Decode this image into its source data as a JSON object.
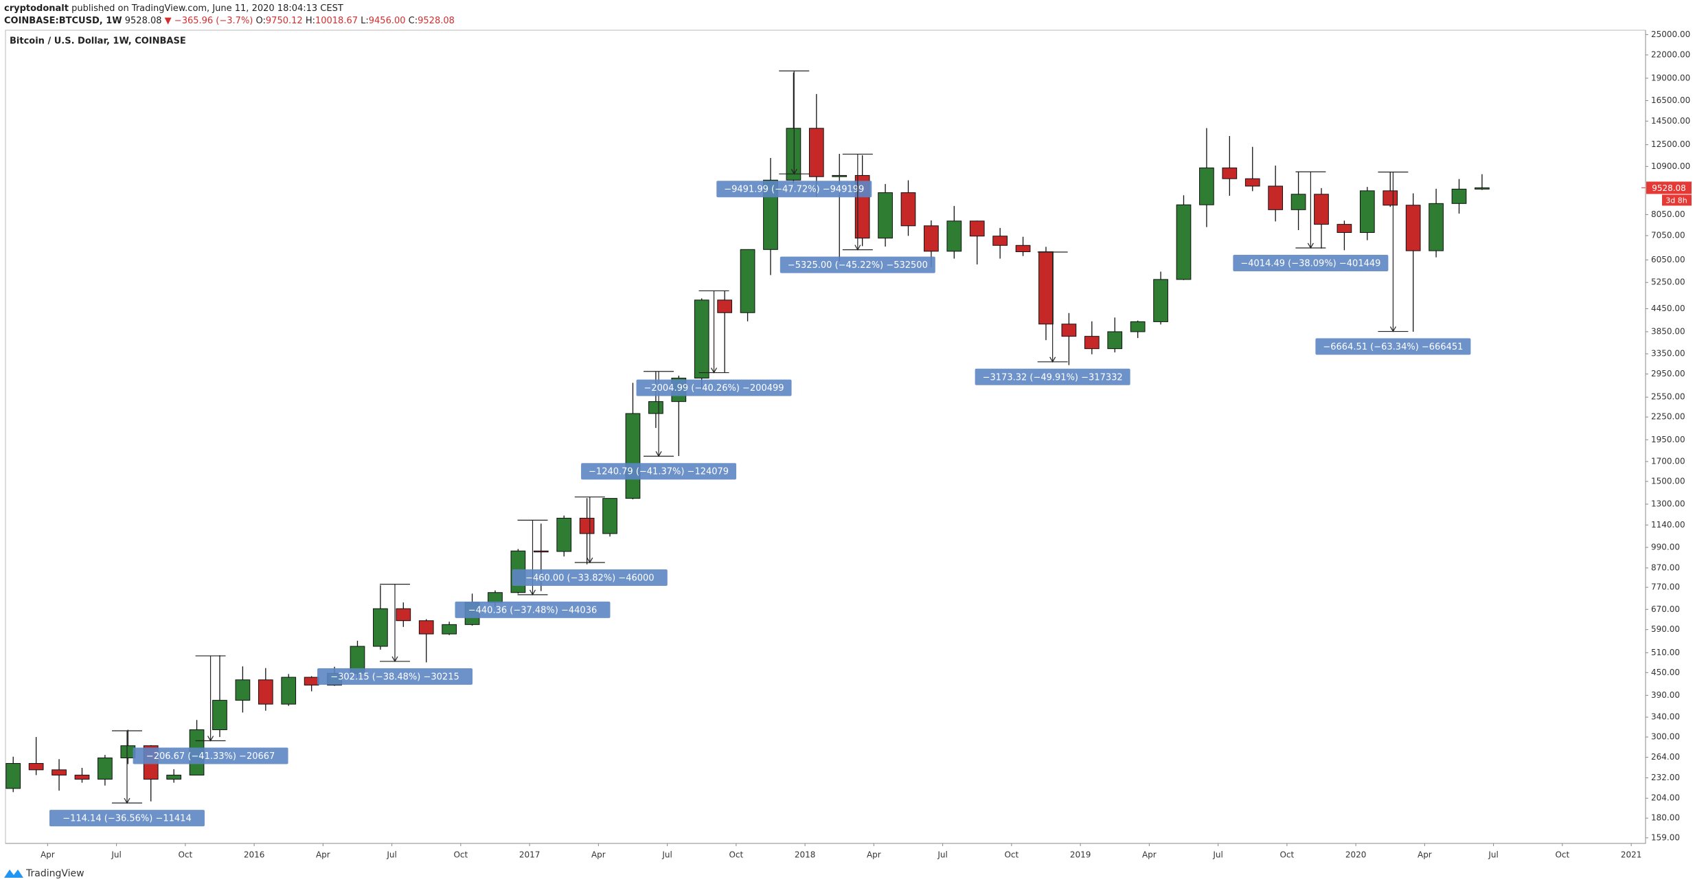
{
  "header": {
    "publisher": "cryptodonalt",
    "published": "published on TradingView.com, June 11, 2020 18:04:13 CEST",
    "symbol": "COINBASE:BTCUSD, 1W",
    "last": "9528.08",
    "change_arrow": "▼",
    "change": "−365.96 (−3.7%)",
    "ohlc": [
      {
        "label": "O:",
        "value": "9750.12"
      },
      {
        "label": "H:",
        "value": "10018.67"
      },
      {
        "label": "L:",
        "value": "9456.00"
      },
      {
        "label": "C:",
        "value": "9528.08"
      }
    ]
  },
  "chart_data": {
    "type": "candlestick",
    "title": "Bitcoin / U.S. Dollar, 1W, COINBASE",
    "log_scale": true,
    "up_color": "#2e7d32",
    "down_color": "#c62828",
    "wick_color": "#111111",
    "x": [
      "2015-02",
      "2015-03",
      "2015-04",
      "2015-05",
      "2015-06",
      "2015-07",
      "2015-08",
      "2015-09",
      "2015-10",
      "2015-11",
      "2015-12",
      "2016-01",
      "2016-02",
      "2016-03",
      "2016-04",
      "2016-05",
      "2016-06",
      "2016-07",
      "2016-08",
      "2016-09",
      "2016-10",
      "2016-11",
      "2016-12",
      "2017-01",
      "2017-02",
      "2017-03",
      "2017-04",
      "2017-05",
      "2017-06",
      "2017-07",
      "2017-08",
      "2017-09",
      "2017-10",
      "2017-11",
      "2017-12",
      "2018-01",
      "2018-02",
      "2018-03",
      "2018-04",
      "2018-05",
      "2018-06",
      "2018-07",
      "2018-08",
      "2018-09",
      "2018-10",
      "2018-11",
      "2018-12",
      "2019-01",
      "2019-02",
      "2019-03",
      "2019-04",
      "2019-05",
      "2019-06",
      "2019-07",
      "2019-08",
      "2019-09",
      "2019-10",
      "2019-11",
      "2019-12",
      "2020-01",
      "2020-02",
      "2020-03",
      "2020-04",
      "2020-05",
      "2020-06"
    ],
    "open": [
      217,
      254,
      244,
      236,
      230,
      263,
      284,
      230,
      236,
      314,
      378,
      430,
      369,
      437,
      416,
      448,
      531,
      673,
      624,
      574,
      609,
      700,
      745,
      968,
      965,
      1190,
      1080,
      1348,
      2300,
      2480,
      2875,
      4700,
      4340,
      6460,
      10000,
      13860,
      10220,
      10300,
      6940,
      9240,
      7500,
      6390,
      7730,
      7030,
      6630,
      6370,
      4040,
      3740,
      3460,
      3850,
      4100,
      5350,
      8560,
      10800,
      10090,
      9630,
      8300,
      9150,
      7570,
      7190,
      9350,
      8540,
      6410,
      8630,
      9450
    ],
    "high": [
      265,
      300,
      261,
      247,
      268,
      314,
      285,
      245,
      334,
      502,
      468,
      463,
      446,
      440,
      467,
      550,
      780,
      700,
      630,
      620,
      740,
      755,
      980,
      1150,
      1210,
      1350,
      1350,
      2790,
      2990,
      2920,
      4750,
      4980,
      6470,
      11500,
      19700,
      17200,
      11800,
      11700,
      9760,
      9990,
      7760,
      8500,
      7750,
      7400,
      7000,
      6570,
      4330,
      4110,
      4210,
      4130,
      5620,
      9090,
      13880,
      13200,
      12330,
      10960,
      10540,
      9510,
      7750,
      9580,
      10500,
      9200,
      9470,
      10070,
      10380
    ],
    "low": [
      212,
      236,
      214,
      225,
      221,
      253,
      200,
      225,
      236,
      300,
      350,
      354,
      365,
      400,
      414,
      436,
      520,
      600,
      480,
      570,
      605,
      680,
      740,
      752,
      935,
      890,
      1060,
      1340,
      2100,
      1760,
      2680,
      2970,
      4110,
      5500,
      9800,
      9000,
      6000,
      6600,
      6580,
      7040,
      5780,
      6100,
      5880,
      6100,
      6200,
      3650,
      3120,
      3340,
      3380,
      3700,
      4030,
      5330,
      7440,
      9060,
      9330,
      7710,
      7300,
      6500,
      6430,
      6850,
      8450,
      3850,
      6150,
      8100,
      9400
    ],
    "close": [
      254,
      244,
      236,
      230,
      263,
      284,
      230,
      236,
      314,
      378,
      430,
      369,
      437,
      416,
      448,
      531,
      673,
      624,
      574,
      609,
      700,
      745,
      968,
      965,
      1190,
      1080,
      1348,
      2300,
      2480,
      2875,
      4700,
      4340,
      6460,
      10000,
      13860,
      10220,
      10300,
      6940,
      9240,
      7500,
      6390,
      7730,
      7030,
      6630,
      6370,
      4040,
      3740,
      3460,
      3850,
      4100,
      5350,
      8560,
      10800,
      10090,
      9630,
      8300,
      9150,
      7570,
      7190,
      9350,
      8540,
      6410,
      8630,
      9450,
      9528.08
    ],
    "xlim": [
      "2015-02-06",
      "2021-01-20"
    ],
    "xticks": [
      {
        "value": "2015-04-01",
        "label": "Apr"
      },
      {
        "value": "2015-07-01",
        "label": "Jul"
      },
      {
        "value": "2015-10-01",
        "label": "Oct"
      },
      {
        "value": "2016-01-01",
        "label": "2016"
      },
      {
        "value": "2016-04-01",
        "label": "Apr"
      },
      {
        "value": "2016-07-01",
        "label": "Jul"
      },
      {
        "value": "2016-10-01",
        "label": "Oct"
      },
      {
        "value": "2017-01-01",
        "label": "2017"
      },
      {
        "value": "2017-04-01",
        "label": "Apr"
      },
      {
        "value": "2017-07-01",
        "label": "Jul"
      },
      {
        "value": "2017-10-01",
        "label": "Oct"
      },
      {
        "value": "2018-01-01",
        "label": "2018"
      },
      {
        "value": "2018-04-01",
        "label": "Apr"
      },
      {
        "value": "2018-07-01",
        "label": "Jul"
      },
      {
        "value": "2018-10-01",
        "label": "Oct"
      },
      {
        "value": "2019-01-01",
        "label": "2019"
      },
      {
        "value": "2019-04-01",
        "label": "Apr"
      },
      {
        "value": "2019-07-01",
        "label": "Jul"
      },
      {
        "value": "2019-10-01",
        "label": "Oct"
      },
      {
        "value": "2020-01-01",
        "label": "2020"
      },
      {
        "value": "2020-04-01",
        "label": "Apr"
      },
      {
        "value": "2020-07-01",
        "label": "Jul"
      },
      {
        "value": "2020-10-01",
        "label": "Oct"
      },
      {
        "value": "2021-01-01",
        "label": "2021"
      }
    ],
    "ylim": [
      153.5,
      25700
    ],
    "yticks": [
      {
        "value": 159,
        "label": "159.00"
      },
      {
        "value": 180,
        "label": "180.00"
      },
      {
        "value": 204,
        "label": "204.00"
      },
      {
        "value": 232,
        "label": "232.00"
      },
      {
        "value": 264,
        "label": "264.00"
      },
      {
        "value": 300,
        "label": "300.00"
      },
      {
        "value": 340,
        "label": "340.00"
      },
      {
        "value": 390,
        "label": "390.00"
      },
      {
        "value": 450,
        "label": "450.00"
      },
      {
        "value": 510,
        "label": "510.00"
      },
      {
        "value": 590,
        "label": "590.00"
      },
      {
        "value": 670,
        "label": "670.00"
      },
      {
        "value": 770,
        "label": "770.00"
      },
      {
        "value": 870,
        "label": "870.00"
      },
      {
        "value": 990,
        "label": "990.00"
      },
      {
        "value": 1140,
        "label": "1140.00"
      },
      {
        "value": 1300,
        "label": "1300.00"
      },
      {
        "value": 1500,
        "label": "1500.00"
      },
      {
        "value": 1700,
        "label": "1700.00"
      },
      {
        "value": 1950,
        "label": "1950.00"
      },
      {
        "value": 2250,
        "label": "2250.00"
      },
      {
        "value": 2550,
        "label": "2550.00"
      },
      {
        "value": 2950,
        "label": "2950.00"
      },
      {
        "value": 3350,
        "label": "3350.00"
      },
      {
        "value": 3850,
        "label": "3850.00"
      },
      {
        "value": 4450,
        "label": "4450.00"
      },
      {
        "value": 5250,
        "label": "5250.00"
      },
      {
        "value": 6050,
        "label": "6050.00"
      },
      {
        "value": 7050,
        "label": "7050.00"
      },
      {
        "value": 8050,
        "label": "8050.00"
      },
      {
        "value": 10900,
        "label": "10900.00"
      },
      {
        "value": 12500,
        "label": "12500.00"
      },
      {
        "value": 14500,
        "label": "14500.00"
      },
      {
        "value": 16500,
        "label": "16500.00"
      },
      {
        "value": 19000,
        "label": "19000.00"
      },
      {
        "value": 22000,
        "label": "22000.00"
      },
      {
        "value": 25000,
        "label": "25000.00"
      }
    ],
    "last_price": 9528.08,
    "countdown": "3d 8h",
    "last_price_color": "#e53935",
    "annotation_color": "#5d86c4",
    "annotations": [
      {
        "x": "2015-07-15",
        "high": 312,
        "low": 198,
        "label": "−114.14 (−36.56%) −11414"
      },
      {
        "x": "2015-11-04",
        "high": 500,
        "low": 293,
        "label": "−206.67 (−41.33%) −20667"
      },
      {
        "x": "2016-07-05",
        "high": 785,
        "low": 483,
        "label": "−302.15 (−38.48%) −30215"
      },
      {
        "x": "2017-01-05",
        "high": 1175,
        "low": 735,
        "label": "−440.36 (−37.48%) −44036"
      },
      {
        "x": "2017-03-20",
        "high": 1360,
        "low": 900,
        "label": "−460.00 (−33.82%) −46000"
      },
      {
        "x": "2017-06-20",
        "high": 2999,
        "low": 1758,
        "label": "−1240.79 (−41.37%) −124079"
      },
      {
        "x": "2017-09-02",
        "high": 4980,
        "low": 2975,
        "label": "−2004.99 (−40.26%) −200499"
      },
      {
        "x": "2017-12-17",
        "high": 19891,
        "low": 10399,
        "label": "−9491.99 (−47.72%) −949199"
      },
      {
        "x": "2018-03-10",
        "high": 11776,
        "low": 6451,
        "label": "−5325.00 (−45.22%) −532500"
      },
      {
        "x": "2018-11-25",
        "high": 6358,
        "low": 3185,
        "label": "−3173.32 (−49.91%) −317332"
      },
      {
        "x": "2019-11-02",
        "high": 10539,
        "low": 6525,
        "label": "−4014.49 (−38.09%) −401449"
      },
      {
        "x": "2020-02-20",
        "high": 10522,
        "low": 3857,
        "label": "−6664.51 (−63.34%) −666451"
      }
    ]
  },
  "footer": {
    "brand": "TradingView"
  }
}
